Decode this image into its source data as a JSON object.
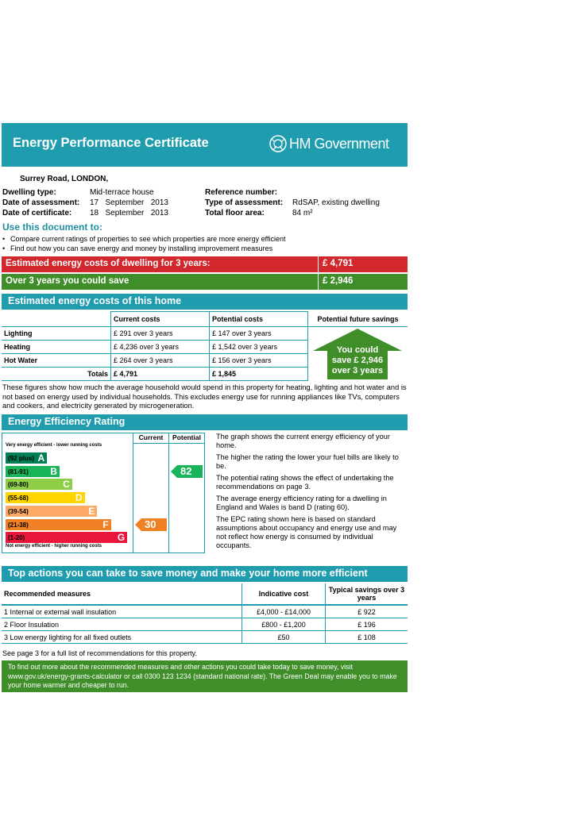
{
  "header": {
    "title": "Energy Performance Certificate",
    "brand": "HM Government",
    "color": "#1f9cae"
  },
  "address": "Surrey Road, LONDON,",
  "details": {
    "dwelling_type_label": "Dwelling type:",
    "dwelling_type": "Mid-terrace house",
    "assessment_date_label": "Date of assessment:",
    "assessment_date": "17   September   2013",
    "certificate_date_label": "Date of certificate:",
    "certificate_date": "18   September   2013",
    "reference_label": "Reference number:",
    "reference": "",
    "assessment_type_label": "Type of assessment:",
    "assessment_type": "RdSAP, existing dwelling",
    "floor_area_label": "Total floor area:",
    "floor_area": "84 m²"
  },
  "use_doc": {
    "title": "Use this document to:",
    "bullets": [
      "Compare current ratings of properties to see which properties are more energy efficient",
      "Find out how you can save energy and money by installing improvement measures"
    ]
  },
  "summary": {
    "cost_label": "Estimated energy costs of dwelling for 3 years:",
    "cost_value": "£ 4,791",
    "save_label": "Over 3 years you could save",
    "save_value": "£ 2,946"
  },
  "costs": {
    "title": "Estimated energy costs of this home",
    "headers": [
      "",
      "Current costs",
      "Potential costs",
      "Potential future savings"
    ],
    "rows": [
      {
        "label": "Lighting",
        "current": "£ 291 over 3 years",
        "potential": "£ 147 over 3 years"
      },
      {
        "label": "Heating",
        "current": "£ 4,236 over 3 years",
        "potential": "£ 1,542 over 3 years"
      },
      {
        "label": "Hot Water",
        "current": "£ 264 over 3 years",
        "potential": "£ 156 over 3 years"
      }
    ],
    "totals_label": "Totals",
    "total_current": "£ 4,791",
    "total_potential": "£ 1,845",
    "savings_line1": "You could",
    "savings_line2": "save £ 2,946",
    "savings_line3": "over 3 years",
    "note": "These figures show how much the average household would spend in this property for heating, lighting and hot water and is not based on energy used by individual households. This excludes energy use for running appliances like TVs, computers and cookers, and electricity generated by microgeneration."
  },
  "rating": {
    "title": "Energy Efficiency Rating",
    "top_note": "Very energy efficient - lower running costs",
    "bottom_note": "Not energy efficient - higher running costs",
    "col_current": "Current",
    "col_potential": "Potential",
    "bands": [
      {
        "range": "(92 plus)",
        "letter": "A",
        "color": "#008054",
        "width": 0.33
      },
      {
        "range": "(81-91)",
        "letter": "B",
        "color": "#19b459",
        "width": 0.43
      },
      {
        "range": "(69-80)",
        "letter": "C",
        "color": "#8dce46",
        "width": 0.53
      },
      {
        "range": "(55-68)",
        "letter": "D",
        "color": "#ffd500",
        "width": 0.63
      },
      {
        "range": "(39-54)",
        "letter": "E",
        "color": "#fcaa65",
        "width": 0.73
      },
      {
        "range": "(21-38)",
        "letter": "F",
        "color": "#ef8023",
        "width": 0.84
      },
      {
        "range": "(1-20)",
        "letter": "G",
        "color": "#e9153b",
        "width": 0.97
      }
    ],
    "current": 30,
    "current_color": "#ef8023",
    "potential": 82,
    "potential_color": "#19b459",
    "paragraphs": [
      "The graph shows the current energy efficiency of your home.",
      "The higher the rating the lower your fuel bills are likely to be.",
      "The potential rating shows the effect of undertaking the recommendations on page 3.",
      "The average energy efficiency rating for a dwelling in England and Wales is band D (rating 60).",
      "The EPC rating shown here is based on standard assumptions about occupancy and energy use and may not reflect how energy is consumed by individual occupants."
    ]
  },
  "actions": {
    "title": "Top actions you can take to save money and make your home more efficient",
    "headers": [
      "Recommended measures",
      "Indicative cost",
      "Typical savings over 3 years"
    ],
    "rows": [
      {
        "measure": "1  Internal or external wall insulation",
        "cost": "£4,000 - £14,000",
        "saving": "£ 922"
      },
      {
        "measure": "2  Floor Insulation",
        "cost": "£800 - £1,200",
        "saving": "£ 196"
      },
      {
        "measure": "3  Low energy lighting for all fixed outlets",
        "cost": "£50",
        "saving": "£ 108"
      }
    ],
    "see_page": "See page 3 for a full list of recommendations for this property."
  },
  "green_deal": "To find out more about the recommended measures and other actions you could take today to save money, visit www.gov.uk/energy-grants-calculator or call 0300 123 1234 (standard national rate). The Green Deal may enable you to make your home warmer and cheaper to run."
}
